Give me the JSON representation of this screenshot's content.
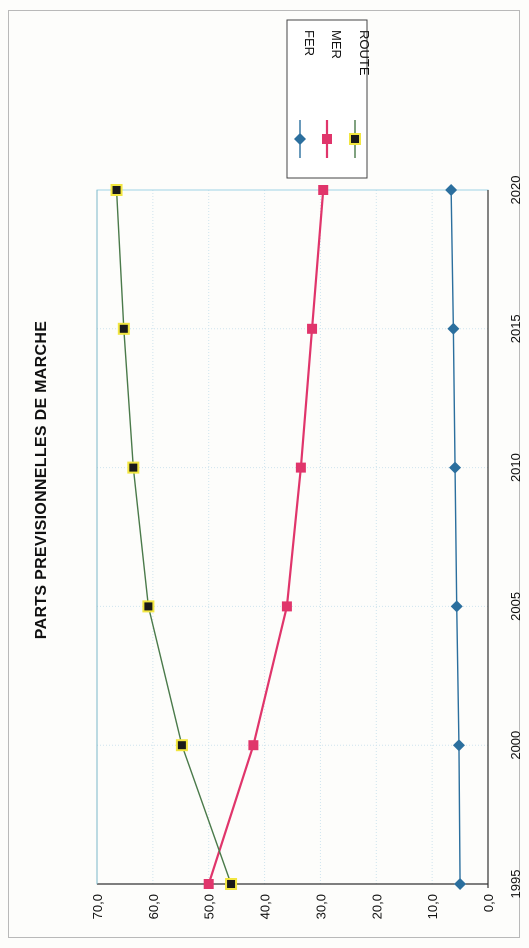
{
  "chart_data": {
    "type": "line",
    "title": "PARTS PREVISIONNELLES DE MARCHE",
    "x": [
      "1995",
      "2000",
      "2005",
      "2010",
      "2015",
      "2020"
    ],
    "ylim": [
      0,
      70
    ],
    "y_ticks": [
      "0,0",
      "10,0",
      "20,0",
      "30,0",
      "40,0",
      "50,0",
      "60,0",
      "70,0"
    ],
    "grid": true,
    "legend_position": "top-right",
    "orientation": "rotated-90",
    "series": [
      {
        "name": "FER",
        "color": "#2b6f9e",
        "marker": "diamond",
        "values": [
          5,
          5.2,
          5.6,
          5.9,
          6.2,
          6.6
        ]
      },
      {
        "name": "MER",
        "color": "#e0356b",
        "marker": "square",
        "values": [
          50,
          42,
          36,
          33.5,
          31.5,
          29.5
        ]
      },
      {
        "name": "ROUTE",
        "color": "#4a7a4a",
        "marker": "square-yellow",
        "values": [
          46,
          54.8,
          60.8,
          63.5,
          65.2,
          66.5
        ]
      }
    ]
  }
}
